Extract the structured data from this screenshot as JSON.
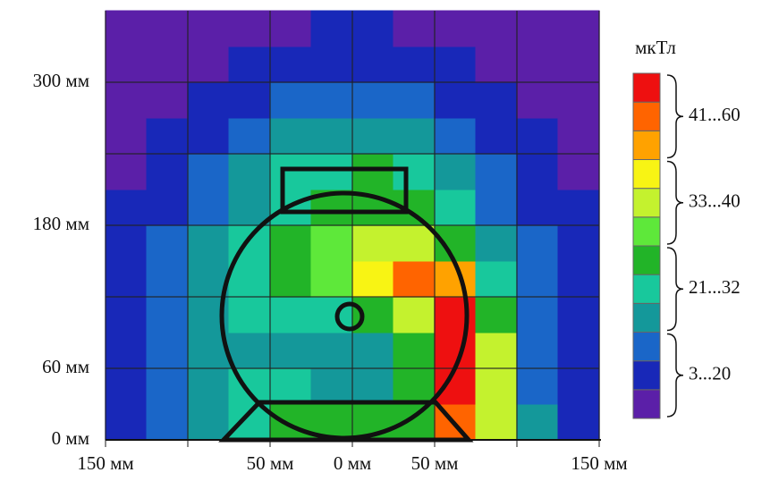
{
  "chart_data": {
    "type": "heatmap",
    "x": [
      -137.5,
      -112.5,
      -87.5,
      -62.5,
      -37.5,
      -12.5,
      12.5,
      37.5,
      62.5,
      87.5,
      112.5,
      137.5
    ],
    "y": [
      15,
      45,
      75,
      105,
      135,
      165,
      195,
      225,
      255,
      285,
      315,
      345
    ],
    "z": [
      [
        14,
        18,
        22,
        26,
        29,
        30,
        30,
        32,
        50,
        38,
        21,
        13
      ],
      [
        14,
        18,
        22,
        25,
        26,
        24,
        23,
        29,
        55,
        38,
        20,
        12
      ],
      [
        14,
        18,
        22,
        24,
        22,
        23,
        24,
        30,
        56,
        36,
        19,
        12
      ],
      [
        14,
        18,
        22,
        25,
        27,
        28,
        30,
        36,
        55,
        32,
        18,
        12
      ],
      [
        13,
        17,
        22,
        26,
        30,
        33,
        40,
        48,
        42,
        26,
        17,
        11
      ],
      [
        12,
        16,
        21,
        25,
        29,
        33,
        36,
        37,
        30,
        22,
        15,
        10
      ],
      [
        10,
        14,
        19,
        23,
        27,
        30,
        31,
        30,
        26,
        19,
        13,
        9
      ],
      [
        8,
        12,
        16,
        21,
        25,
        28,
        29,
        26,
        22,
        16,
        11,
        7
      ],
      [
        6,
        10,
        13,
        17,
        21,
        24,
        24,
        22,
        18,
        13,
        10,
        6
      ],
      [
        5,
        6,
        10,
        14,
        17,
        20,
        20,
        17,
        14,
        10,
        6,
        5
      ],
      [
        5,
        5,
        6,
        10,
        12,
        14,
        14,
        12,
        10,
        6,
        5,
        5
      ],
      [
        5,
        5,
        5,
        5,
        8,
        10,
        10,
        8,
        5,
        5,
        5,
        5
      ]
    ],
    "xlim": [
      -150,
      150
    ],
    "ylim": [
      0,
      360
    ],
    "xticks": [
      {
        "value": -150,
        "label": "150 мм"
      },
      -100,
      {
        "value": -50,
        "label": "50 мм"
      },
      {
        "value": 0,
        "label": "0 мм"
      },
      {
        "value": 50,
        "label": "50 мм"
      },
      100,
      {
        "value": 150,
        "label": "150 мм"
      }
    ],
    "yticks": [
      {
        "value": 0,
        "label": "0 мм"
      },
      {
        "value": 60,
        "label": "60 мм"
      },
      {
        "value": 120,
        "label": null
      },
      {
        "value": 180,
        "label": "180 мм"
      },
      {
        "value": 240,
        "label": null
      },
      {
        "value": 300,
        "label": "300 мм"
      }
    ],
    "grid": true,
    "colorbar_title": "мкТл",
    "colorscale": [
      {
        "label": "3...20",
        "range": [
          3,
          20
        ],
        "colors": [
          "#5b1fa8",
          "#1828b8",
          "#1a66c8"
        ]
      },
      {
        "label": "21...32",
        "range": [
          21,
          32
        ],
        "colors": [
          "#14989a",
          "#18c89c",
          "#22b428"
        ]
      },
      {
        "label": "33...40",
        "range": [
          33,
          40
        ],
        "colors": [
          "#5ee83a",
          "#c4f22e",
          "#f8f414"
        ]
      },
      {
        "label": "41...60",
        "range": [
          41,
          60
        ],
        "colors": [
          "#ffa200",
          "#ff6400",
          "#ee1010"
        ]
      }
    ]
  }
}
